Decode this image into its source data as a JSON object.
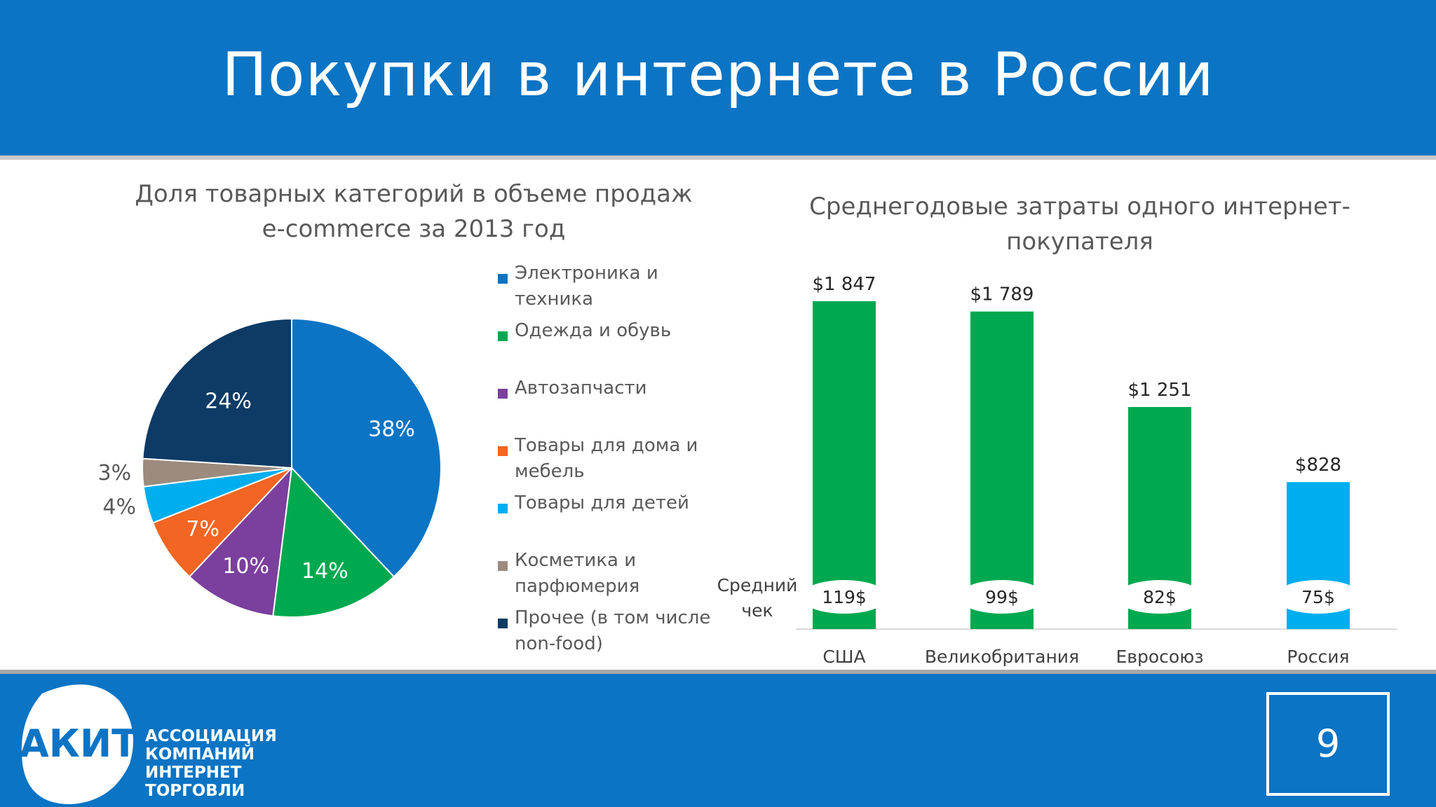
{
  "slide": {
    "title": "Покупки в интернете в России",
    "page_number": "9"
  },
  "logo": {
    "abbr": "АКИТ",
    "lines": [
      "АССОЦИАЦИЯ",
      "КОМПАНИЙ",
      "ИНТЕРНЕТ",
      "ТОРГОВЛИ"
    ]
  },
  "colors": {
    "brand_blue": "#0b74c4",
    "electronics": "#0b74c4",
    "clothing": "#00a94f",
    "auto": "#7b3f9e",
    "home": "#f26522",
    "kids": "#00aeef",
    "cosmetics": "#9c8b7e",
    "other": "#0d3b66"
  },
  "chart_data": [
    {
      "type": "pie",
      "title": "Доля товарных категорий в объеме продаж e-commerce за 2013 год",
      "legend_position": "right",
      "slices": [
        {
          "label": "Электроника и техника",
          "value": 38,
          "display": "38%",
          "color": "#0b74c4"
        },
        {
          "label": "Одежда и обувь",
          "value": 14,
          "display": "14%",
          "color": "#00a94f"
        },
        {
          "label": "Автозапчасти",
          "value": 10,
          "display": "10%",
          "color": "#7b3f9e"
        },
        {
          "label": "Товары для дома и мебель",
          "value": 7,
          "display": "7%",
          "color": "#f26522"
        },
        {
          "label": "Товары для детей",
          "value": 4,
          "display": "4%",
          "color": "#00aeef"
        },
        {
          "label": "Косметика и парфюмерия",
          "value": 3,
          "display": "3%",
          "color": "#9c8b7e"
        },
        {
          "label": "Прочее (в том числе non-food)",
          "value": 24,
          "display": "24%",
          "color": "#0d3b66"
        }
      ]
    },
    {
      "type": "bar",
      "title": "Среднегодовые затраты одного интернет-покупателя",
      "categories": [
        "США",
        "Великобритания",
        "Евросоюз",
        "Россия"
      ],
      "values": [
        1847,
        1789,
        1251,
        828
      ],
      "value_labels": [
        "$1 847",
        "$1 789",
        "$1 251",
        "$828"
      ],
      "bar_colors": [
        "#00a94f",
        "#00a94f",
        "#00a94f",
        "#00aeef"
      ],
      "ylim": [
        0,
        1847
      ],
      "grid": false,
      "average_check": {
        "label": "Средний чек",
        "values": [
          119,
          99,
          82,
          75
        ],
        "display": [
          "119$",
          "99$",
          "82$",
          "75$"
        ]
      }
    }
  ]
}
